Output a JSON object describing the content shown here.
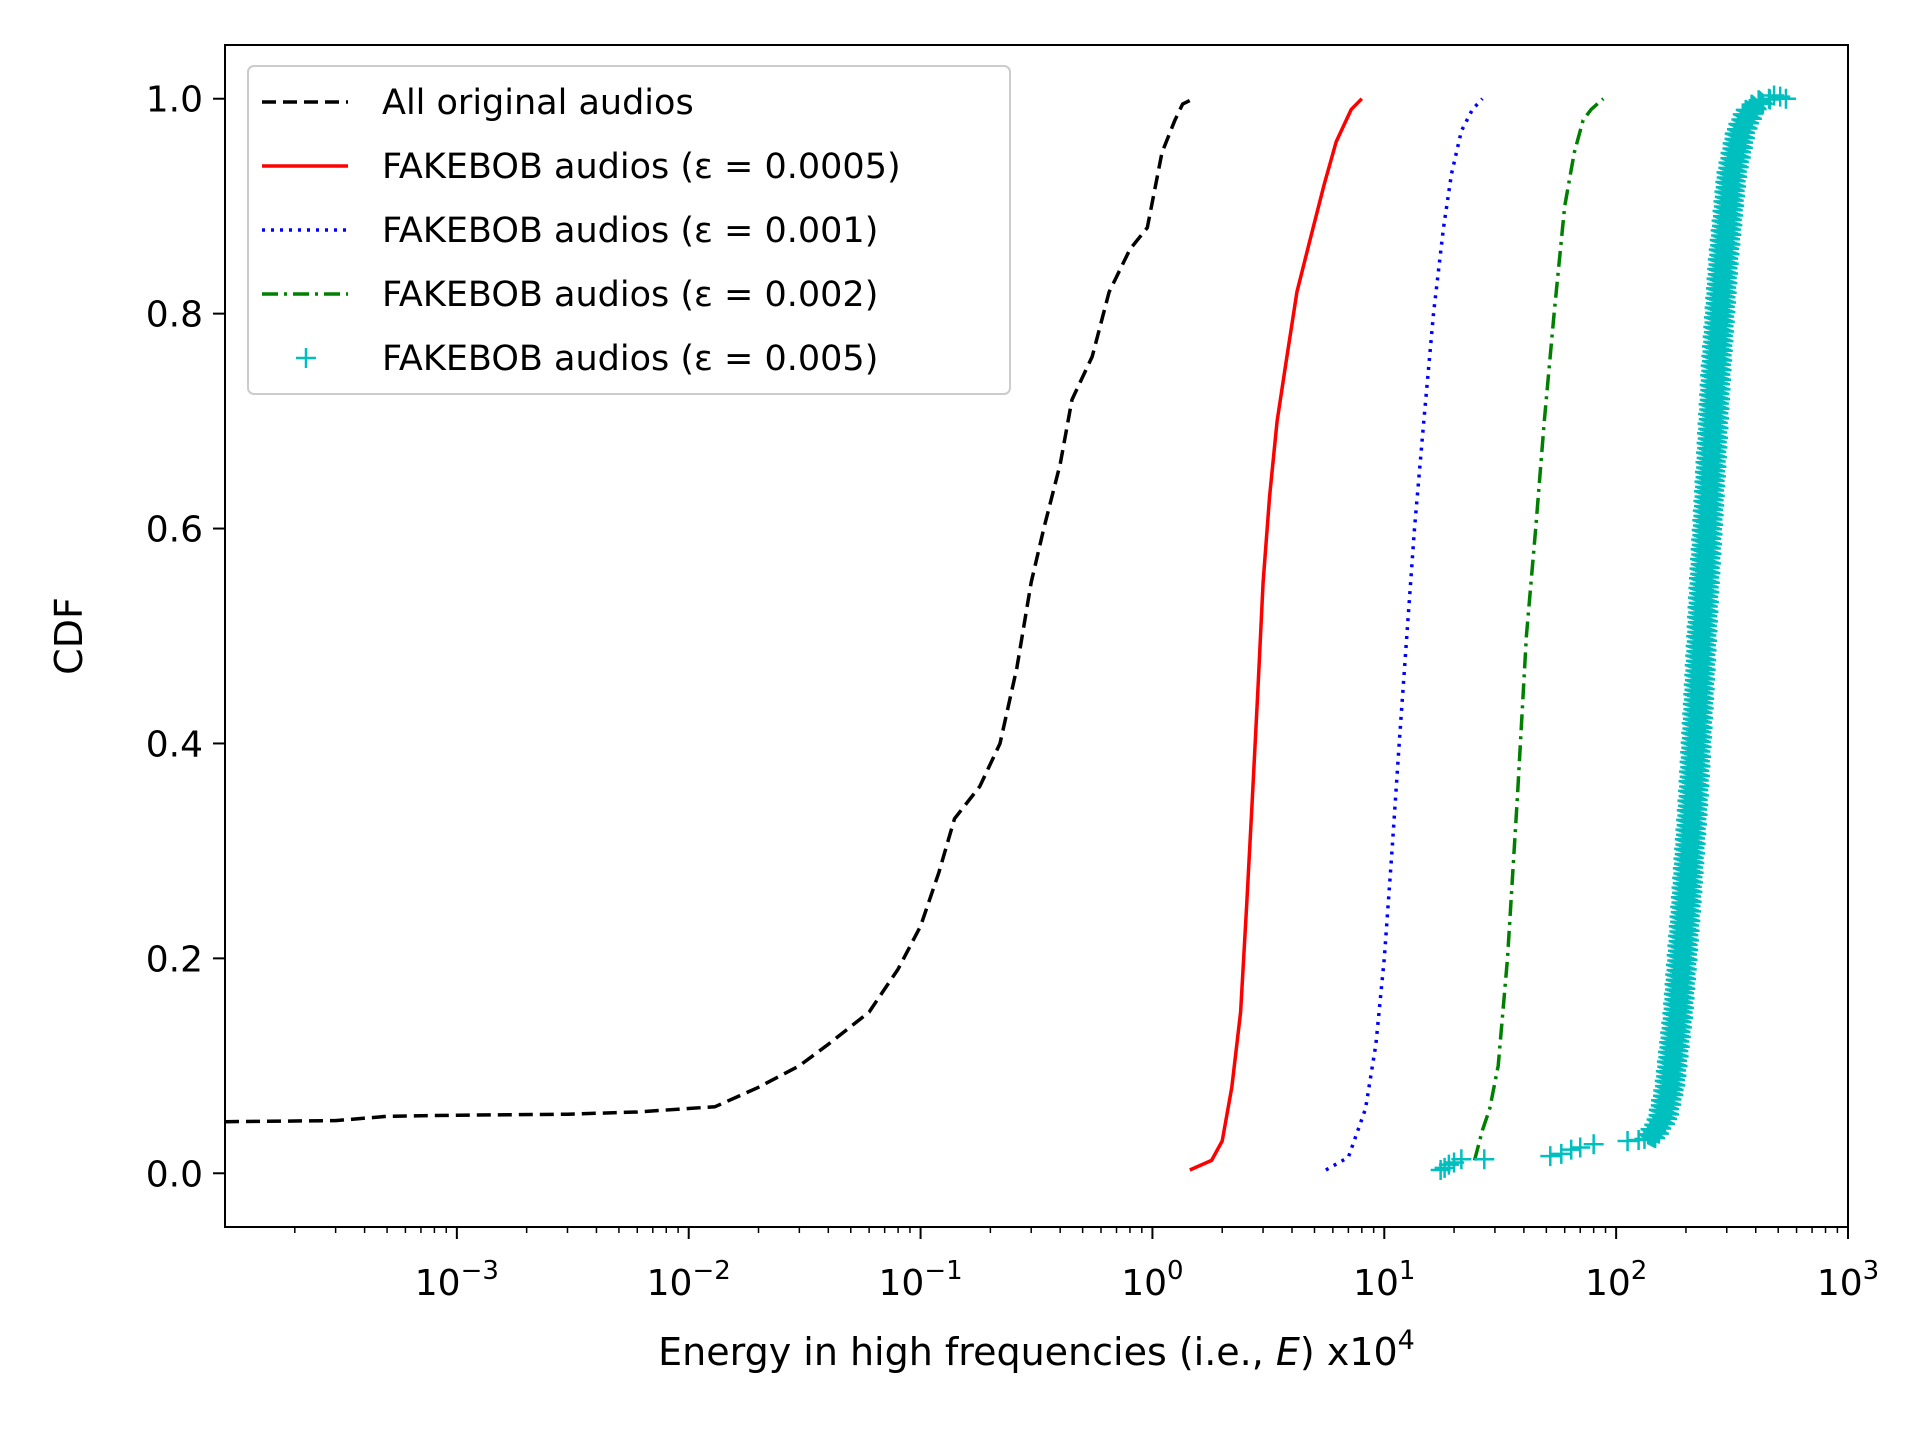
{
  "chart_data": {
    "type": "line",
    "title": "",
    "xlabel": "Energy in high frequencies (i.e., E) x10^4",
    "xlabel_parts": {
      "prefix": "Energy in high frequencies (i.e., ",
      "var": "E",
      "suffix": ") x10",
      "sup": "4"
    },
    "ylabel": "CDF",
    "xscale": "log",
    "xlim": [
      0.0001,
      1000
    ],
    "ylim": [
      -0.05,
      1.05
    ],
    "grid": false,
    "legend_position": "top-left",
    "x_ticks": [
      {
        "value": 0.001,
        "base": "10",
        "exp": "−3"
      },
      {
        "value": 0.01,
        "base": "10",
        "exp": "−2"
      },
      {
        "value": 0.1,
        "base": "10",
        "exp": "−1"
      },
      {
        "value": 1,
        "base": "10",
        "exp": "0"
      },
      {
        "value": 10,
        "base": "10",
        "exp": "1"
      },
      {
        "value": 100,
        "base": "10",
        "exp": "2"
      },
      {
        "value": 1000,
        "base": "10",
        "exp": "3"
      }
    ],
    "y_ticks": [
      {
        "value": 0.0,
        "label": "0.0"
      },
      {
        "value": 0.2,
        "label": "0.2"
      },
      {
        "value": 0.4,
        "label": "0.4"
      },
      {
        "value": 0.6,
        "label": "0.6"
      },
      {
        "value": 0.8,
        "label": "0.8"
      },
      {
        "value": 1.0,
        "label": "1.0"
      }
    ],
    "series": [
      {
        "name": "All original audios",
        "color": "#000000",
        "style": "dashed",
        "points": [
          [
            0.0001,
            0.048
          ],
          [
            0.0003,
            0.049
          ],
          [
            0.0005,
            0.053
          ],
          [
            0.001,
            0.054
          ],
          [
            0.003,
            0.055
          ],
          [
            0.006,
            0.057
          ],
          [
            0.013,
            0.062
          ],
          [
            0.02,
            0.08
          ],
          [
            0.03,
            0.1
          ],
          [
            0.04,
            0.12
          ],
          [
            0.06,
            0.15
          ],
          [
            0.08,
            0.19
          ],
          [
            0.1,
            0.23
          ],
          [
            0.12,
            0.28
          ],
          [
            0.14,
            0.33
          ],
          [
            0.18,
            0.36
          ],
          [
            0.22,
            0.4
          ],
          [
            0.26,
            0.47
          ],
          [
            0.3,
            0.55
          ],
          [
            0.34,
            0.6
          ],
          [
            0.4,
            0.66
          ],
          [
            0.45,
            0.72
          ],
          [
            0.55,
            0.76
          ],
          [
            0.65,
            0.82
          ],
          [
            0.8,
            0.86
          ],
          [
            0.95,
            0.88
          ],
          [
            1.1,
            0.95
          ],
          [
            1.25,
            0.98
          ],
          [
            1.35,
            0.995
          ],
          [
            1.5,
            1.0
          ]
        ]
      },
      {
        "name": "FAKEBOB audios (ε = 0.0005)",
        "color": "#ff0000",
        "style": "solid",
        "points": [
          [
            1.45,
            0.003
          ],
          [
            1.8,
            0.012
          ],
          [
            2.0,
            0.03
          ],
          [
            2.2,
            0.08
          ],
          [
            2.4,
            0.15
          ],
          [
            2.55,
            0.25
          ],
          [
            2.7,
            0.35
          ],
          [
            2.85,
            0.45
          ],
          [
            3.0,
            0.55
          ],
          [
            3.2,
            0.63
          ],
          [
            3.45,
            0.7
          ],
          [
            3.8,
            0.76
          ],
          [
            4.2,
            0.82
          ],
          [
            4.8,
            0.87
          ],
          [
            5.5,
            0.92
          ],
          [
            6.2,
            0.96
          ],
          [
            7.2,
            0.99
          ],
          [
            8.0,
            1.0
          ]
        ]
      },
      {
        "name": "FAKEBOB audios (ε = 0.001)",
        "color": "#0000ff",
        "style": "dotted",
        "points": [
          [
            5.6,
            0.003
          ],
          [
            7.0,
            0.015
          ],
          [
            8.3,
            0.06
          ],
          [
            9.2,
            0.12
          ],
          [
            10.0,
            0.2
          ],
          [
            10.8,
            0.3
          ],
          [
            11.6,
            0.4
          ],
          [
            12.5,
            0.5
          ],
          [
            13.5,
            0.6
          ],
          [
            14.8,
            0.7
          ],
          [
            16.3,
            0.8
          ],
          [
            18.0,
            0.88
          ],
          [
            19.5,
            0.93
          ],
          [
            21.5,
            0.97
          ],
          [
            24.0,
            0.99
          ],
          [
            26.5,
            1.0
          ]
        ]
      },
      {
        "name": "FAKEBOB audios (ε = 0.002)",
        "color": "#008000",
        "style": "dashdot",
        "points": [
          [
            24.5,
            0.012
          ],
          [
            26.5,
            0.04
          ],
          [
            28.5,
            0.06
          ],
          [
            31.0,
            0.1
          ],
          [
            34.0,
            0.2
          ],
          [
            37.5,
            0.35
          ],
          [
            41.0,
            0.5
          ],
          [
            45.0,
            0.6
          ],
          [
            49.0,
            0.7
          ],
          [
            54.0,
            0.8
          ],
          [
            60.0,
            0.9
          ],
          [
            66.0,
            0.95
          ],
          [
            72.0,
            0.98
          ],
          [
            78.0,
            0.99
          ],
          [
            88.0,
            1.0
          ]
        ]
      },
      {
        "name": "FAKEBOB audios (ε = 0.005)",
        "color": "#00bfbf",
        "style": "marker-plus",
        "outliers": [
          [
            17.5,
            0.003
          ],
          [
            18.2,
            0.005
          ],
          [
            19.0,
            0.008
          ],
          [
            20.0,
            0.01
          ],
          [
            21.5,
            0.013
          ],
          [
            27.0,
            0.013
          ],
          [
            52.0,
            0.016
          ],
          [
            58.0,
            0.018
          ],
          [
            64.0,
            0.022
          ],
          [
            70.0,
            0.024
          ],
          [
            80.0,
            0.027
          ],
          [
            112.0,
            0.03
          ],
          [
            125.0,
            0.031
          ],
          [
            480.0,
            1.003
          ],
          [
            510.0,
            1.002
          ],
          [
            540.0,
            1.0
          ]
        ],
        "points": [
          [
            140,
            0.032
          ],
          [
            158,
            0.05
          ],
          [
            170,
            0.08
          ],
          [
            185,
            0.15
          ],
          [
            200,
            0.25
          ],
          [
            215,
            0.35
          ],
          [
            228,
            0.45
          ],
          [
            240,
            0.55
          ],
          [
            255,
            0.65
          ],
          [
            270,
            0.75
          ],
          [
            290,
            0.85
          ],
          [
            315,
            0.93
          ],
          [
            345,
            0.97
          ],
          [
            380,
            0.99
          ],
          [
            440,
            1.0
          ]
        ]
      }
    ]
  }
}
